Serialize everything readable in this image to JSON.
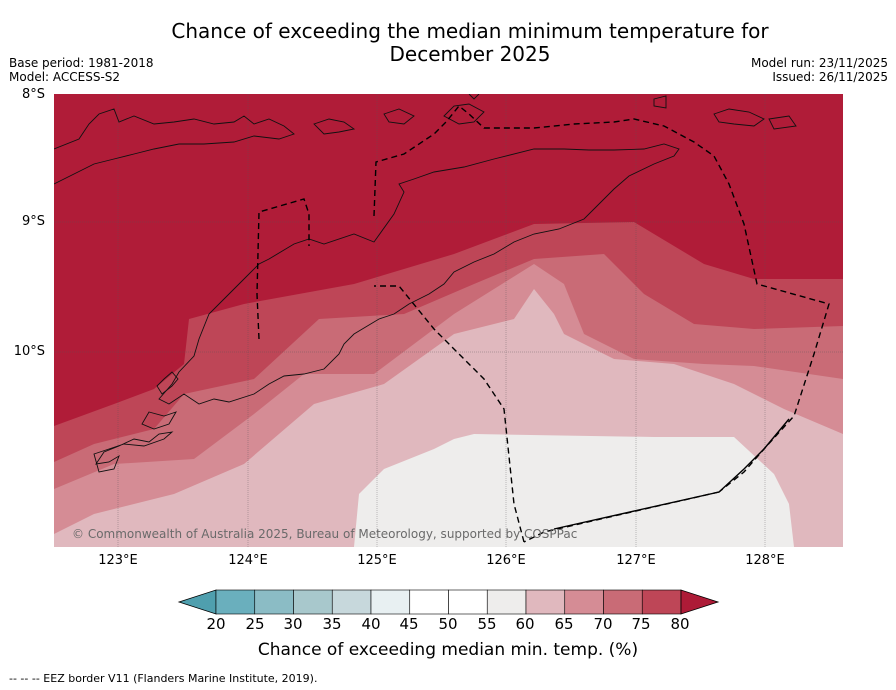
{
  "title": "Chance of exceeding the median minimum temperature for December 2025",
  "title_line1": "Chance of exceeding the median minimum temperature for",
  "title_line2": "December 2025",
  "meta_left": {
    "base_period": "Base period: 1981-2018",
    "model": "Model: ACCESS-S2"
  },
  "meta_right": {
    "model_run": "Model run: 23/11/2025",
    "issued": "Issued: 26/11/2025"
  },
  "latitude_labels": [
    "8°S",
    "9°S",
    "10°S"
  ],
  "longitude_labels": [
    "123°E",
    "124°E",
    "125°E",
    "126°E",
    "127°E",
    "128°E"
  ],
  "copyright": "© Commonwealth of Australia 2025, Bureau of Meteorology, supported by COSPPac",
  "colorbar": {
    "ticks": [
      "20",
      "25",
      "30",
      "35",
      "40",
      "45",
      "50",
      "55",
      "60",
      "65",
      "70",
      "75",
      "80"
    ],
    "label": "Chance of exceeding median min. temp. (%)",
    "colors": [
      "#4f9fae",
      "#6aafbd",
      "#8bbcc5",
      "#a8c8cc",
      "#c7d8dc",
      "#e8f0f2",
      "#ffffff",
      "#ffffff",
      "#eeedec",
      "#e0b8be",
      "#d58c95",
      "#c96b76",
      "#be4657",
      "#ad1b37"
    ]
  },
  "legend_classes": {
    "55-60": "#eeedec",
    "60-65": "#e0b8be",
    "65-70": "#d58c95",
    "70-75": "#c96b76",
    "75-80": "#be4657",
    ">80": "#b01c38"
  },
  "footer": "--  --  -- EEZ border V11 (Flanders Marine Institute, 2019)."
}
